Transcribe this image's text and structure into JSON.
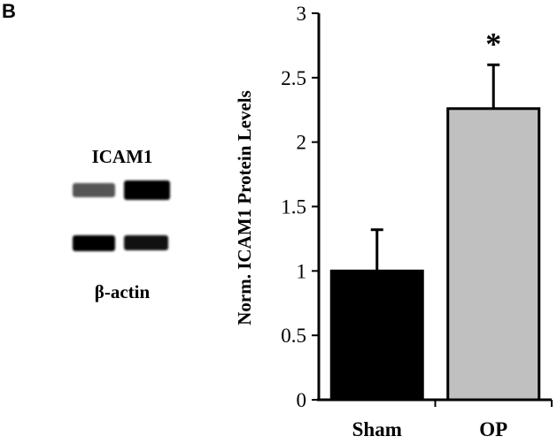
{
  "panel_label": "B",
  "blot": {
    "top_label": "ICAM1",
    "bottom_label": "β-actin"
  },
  "chart_data": {
    "type": "bar",
    "title": "",
    "xlabel": "",
    "ylabel": "Norm. ICAM1 Protein Levels",
    "categories": [
      "Sham",
      "OP"
    ],
    "values": [
      1.0,
      2.26
    ],
    "errors": [
      0.32,
      0.34
    ],
    "bar_colors": [
      "#000000",
      "#c0c0c0"
    ],
    "annotations": [
      "",
      "*"
    ],
    "ylim": [
      0,
      3
    ],
    "yticks": [
      "0",
      "0.5",
      "1",
      "1.5",
      "2",
      "2.5",
      "3"
    ],
    "grid": false
  }
}
